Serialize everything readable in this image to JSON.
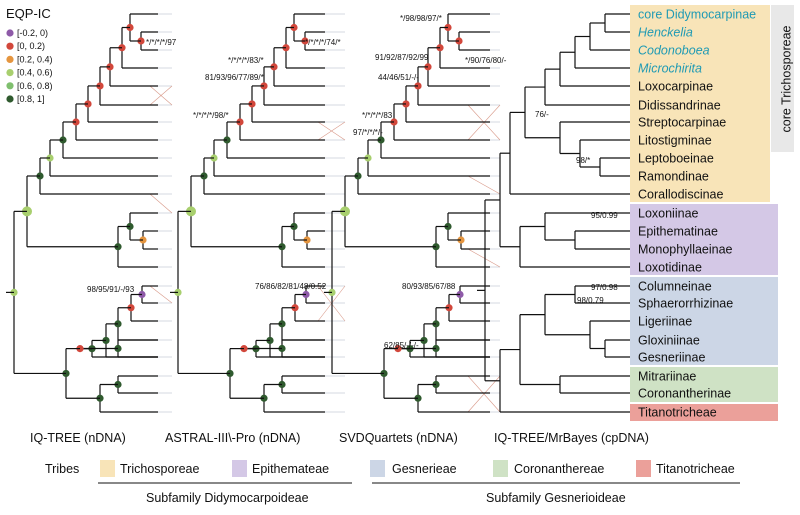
{
  "legend": {
    "title": "EQP-IC",
    "items": [
      {
        "label": "[-0.2, 0)",
        "color": "#8e5aa8"
      },
      {
        "label": "[0, 0.2)",
        "color": "#d2473b"
      },
      {
        "label": "[0.2, 0.4)",
        "color": "#e5953f"
      },
      {
        "label": "[0.4, 0.6)",
        "color": "#a8cf6e"
      },
      {
        "label": "[0.6, 0.8)",
        "color": "#7fbf6e"
      },
      {
        "label": "[0.8, 1]",
        "color": "#2f5a2e"
      }
    ]
  },
  "trees": [
    {
      "id": "iqtree",
      "label": "IQ-TREE (nDNA)"
    },
    {
      "id": "astral",
      "label": "ASTRAL-III\\-Pro (nDNA)"
    },
    {
      "id": "svd",
      "label": "SVDQuartets (nDNA)"
    },
    {
      "id": "cp",
      "label": "IQ-TREE/MrBayes (cpDNA)"
    }
  ],
  "support_labels": [
    {
      "id": "s1",
      "text": "*/*/*/*/97"
    },
    {
      "id": "s2",
      "text": "98/95/91/-/93"
    },
    {
      "id": "s3",
      "text": "*/*/*/*/83/*"
    },
    {
      "id": "s4",
      "text": "*/*/*/*/74/*"
    },
    {
      "id": "s5",
      "text": "81/93/96/77/89/*"
    },
    {
      "id": "s6",
      "text": "*/*/*/*/98/*"
    },
    {
      "id": "s7",
      "text": "76/86/82/81/48/0.52"
    },
    {
      "id": "s8",
      "text": "*/98/98/97/*"
    },
    {
      "id": "s9",
      "text": "91/92/87/92/99"
    },
    {
      "id": "s10",
      "text": "*/90/76/80/-"
    },
    {
      "id": "s11",
      "text": "44/46/51/-/-"
    },
    {
      "id": "s12",
      "text": "*/*/*/*/83"
    },
    {
      "id": "s13",
      "text": "97/*/*/*/-"
    },
    {
      "id": "s14",
      "text": "80/93/85/67/88"
    },
    {
      "id": "s15",
      "text": "62/85/-/-/-"
    },
    {
      "id": "s16",
      "text": "76/-"
    },
    {
      "id": "s17",
      "text": "98/*"
    },
    {
      "id": "s18",
      "text": "95/0.99"
    },
    {
      "id": "s19",
      "text": "97/0.98"
    },
    {
      "id": "s20",
      "text": "98/0.79"
    }
  ],
  "tips": [
    {
      "text": "core Didymocarpinae",
      "style": "cyan"
    },
    {
      "text": "Henckelia",
      "style": "cyan-italic"
    },
    {
      "text": "Codonoboea",
      "style": "cyan-italic"
    },
    {
      "text": "Microchirita",
      "style": "cyan-italic"
    },
    {
      "text": "Loxocarpinae",
      "style": "plain"
    },
    {
      "text": "Didissandrinae",
      "style": "plain"
    },
    {
      "text": "Streptocarpinae",
      "style": "plain"
    },
    {
      "text": "Litostigminae",
      "style": "plain"
    },
    {
      "text": "Leptoboeinae",
      "style": "plain"
    },
    {
      "text": "Ramondinae",
      "style": "plain"
    },
    {
      "text": "Corallodiscinae",
      "style": "plain"
    },
    {
      "text": "Loxoniinae",
      "style": "plain"
    },
    {
      "text": "Epithematinae",
      "style": "plain"
    },
    {
      "text": "Monophyllaeinae",
      "style": "plain"
    },
    {
      "text": "Loxotidinae",
      "style": "plain"
    },
    {
      "text": "Columneinae",
      "style": "plain"
    },
    {
      "text": "Sphaerorrhizinae",
      "style": "plain"
    },
    {
      "text": "Ligeriinae",
      "style": "plain"
    },
    {
      "text": "Gloxiniinae",
      "style": "plain"
    },
    {
      "text": "Gesneriinae",
      "style": "plain"
    },
    {
      "text": "Mitrariinae",
      "style": "plain"
    },
    {
      "text": "Coronantherinae",
      "style": "plain"
    },
    {
      "text": "Titanotricheae",
      "style": "plain"
    }
  ],
  "core_label": "core Trichosporeae",
  "tribes": {
    "title": "Tribes",
    "items": [
      {
        "label": "Trichosporeae",
        "color": "#f8e4b8"
      },
      {
        "label": "Epithemateae",
        "color": "#d4c8e6"
      },
      {
        "label": "Gesnerieae",
        "color": "#ccd6e6"
      },
      {
        "label": "Coronanthereae",
        "color": "#cfe2c5"
      },
      {
        "label": "Titanotricheae",
        "color": "#eba09a"
      }
    ]
  },
  "subfamilies": [
    {
      "label": "Subfamily Didymocarpoideae"
    },
    {
      "label": "Subfamily Gesnerioideae"
    }
  ]
}
